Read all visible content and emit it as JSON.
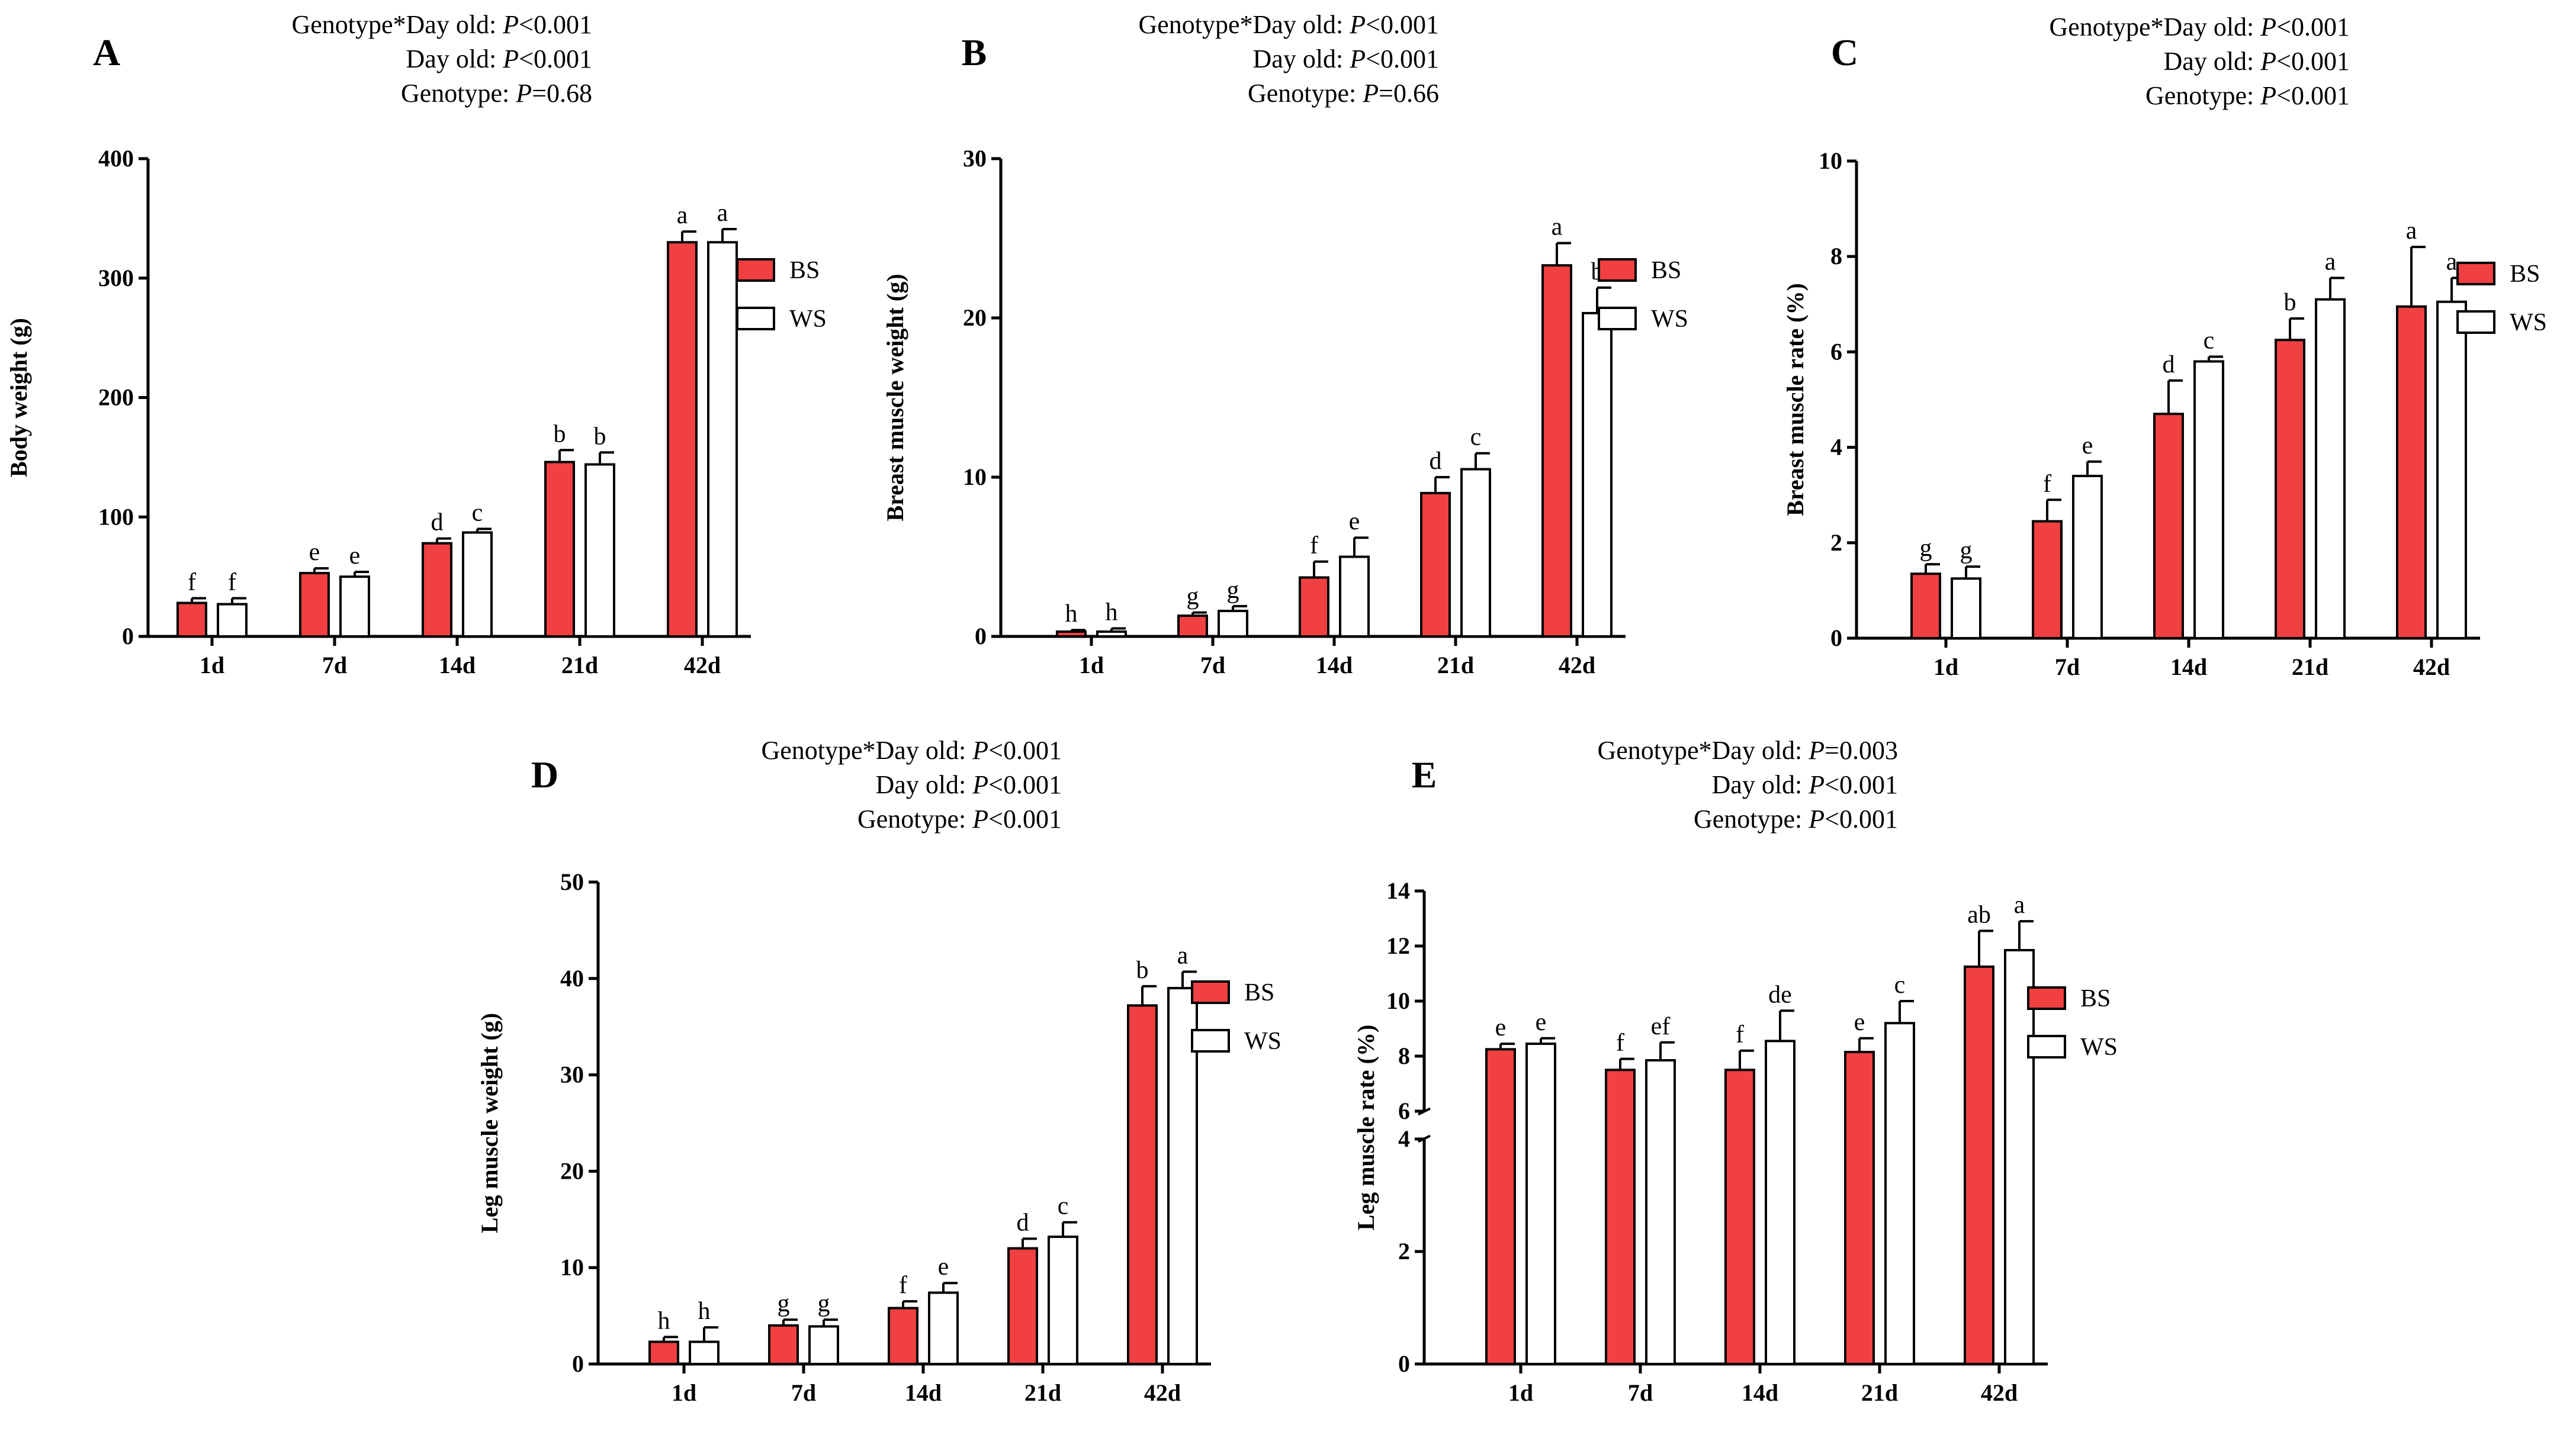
{
  "colors": {
    "bs": "#F04042",
    "ws": "#FFFFFF",
    "stroke": "#000000"
  },
  "categories": [
    "1d",
    "7d",
    "14d",
    "21d",
    "42d"
  ],
  "legend": {
    "bs": "BS",
    "ws": "WS"
  },
  "chart_data": [
    {
      "panel": "A",
      "type": "bar",
      "ylabel": "Body weight (g)",
      "ylim": [
        0,
        400
      ],
      "yticks": [
        0,
        100,
        200,
        300,
        400
      ],
      "stats": [
        {
          "term": "Genotype*Day old: ",
          "italic": "P",
          "rest": "<0.001"
        },
        {
          "term": "Day old: ",
          "italic": "P",
          "rest": "<0.001"
        },
        {
          "term": "Genotype: ",
          "italic": "P",
          "rest": "=0.68"
        }
      ],
      "series": [
        {
          "name": "BS",
          "values": [
            28,
            53,
            78,
            146,
            330
          ],
          "errors": [
            4,
            4,
            4,
            10,
            9
          ],
          "letters": [
            "f",
            "e",
            "d",
            "b",
            "a"
          ]
        },
        {
          "name": "WS",
          "values": [
            27,
            50,
            87,
            144,
            330
          ],
          "errors": [
            5,
            4,
            3,
            10,
            11
          ],
          "letters": [
            "f",
            "e",
            "c",
            "b",
            "a"
          ]
        }
      ]
    },
    {
      "panel": "B",
      "type": "bar",
      "ylabel": "Breast muscle weight (g)",
      "ylim": [
        0,
        30
      ],
      "yticks": [
        0,
        10,
        20,
        30
      ],
      "stats": [
        {
          "term": "Genotype*Day old: ",
          "italic": "P",
          "rest": "<0.001"
        },
        {
          "term": "Day old: ",
          "italic": "P",
          "rest": "<0.001"
        },
        {
          "term": "Genotype: ",
          "italic": "P",
          "rest": "=0.66"
        }
      ],
      "series": [
        {
          "name": "BS",
          "values": [
            0.3,
            1.3,
            3.7,
            9.0,
            23.3
          ],
          "errors": [
            0.1,
            0.2,
            1.0,
            1.0,
            1.4
          ],
          "letters": [
            "h",
            "g",
            "f",
            "d",
            "a"
          ]
        },
        {
          "name": "WS",
          "values": [
            0.3,
            1.6,
            5.0,
            10.5,
            20.3
          ],
          "errors": [
            0.2,
            0.3,
            1.2,
            1.0,
            1.6
          ],
          "letters": [
            "h",
            "g",
            "e",
            "c",
            "b"
          ]
        }
      ]
    },
    {
      "panel": "C",
      "type": "bar",
      "ylabel": "Breast muscle rate (%)",
      "ylim": [
        0,
        10
      ],
      "yticks": [
        0,
        2,
        4,
        6,
        8,
        10
      ],
      "stats": [
        {
          "term": "Genotype*Day old: ",
          "italic": "P",
          "rest": "<0.001"
        },
        {
          "term": "Day old: ",
          "italic": "P",
          "rest": "<0.001"
        },
        {
          "term": "Genotype: ",
          "italic": "P",
          "rest": "<0.001"
        }
      ],
      "series": [
        {
          "name": "BS",
          "values": [
            1.35,
            2.45,
            4.7,
            6.25,
            6.95
          ],
          "errors": [
            0.2,
            0.45,
            0.7,
            0.45,
            1.25
          ],
          "letters": [
            "g",
            "f",
            "d",
            "b",
            "a"
          ]
        },
        {
          "name": "WS",
          "values": [
            1.25,
            3.4,
            5.8,
            7.1,
            7.05
          ],
          "errors": [
            0.25,
            0.3,
            0.1,
            0.45,
            0.5
          ],
          "letters": [
            "g",
            "e",
            "c",
            "a",
            "a"
          ]
        }
      ]
    },
    {
      "panel": "D",
      "type": "bar",
      "ylabel": "Leg muscle weight (g)",
      "ylim": [
        0,
        50
      ],
      "yticks": [
        0,
        10,
        20,
        30,
        40,
        50
      ],
      "stats": [
        {
          "term": "Genotype*Day old: ",
          "italic": "P",
          "rest": "<0.001"
        },
        {
          "term": "Day  old: ",
          "italic": "P",
          "rest": "<0.001"
        },
        {
          "term": "Genotype: ",
          "italic": "P",
          "rest": "<0.001"
        }
      ],
      "series": [
        {
          "name": "BS",
          "values": [
            2.3,
            4.0,
            5.8,
            12.0,
            37.2
          ],
          "errors": [
            0.5,
            0.6,
            0.7,
            1.0,
            2.0
          ],
          "letters": [
            "h",
            "g",
            "f",
            "d",
            "b"
          ]
        },
        {
          "name": "WS",
          "values": [
            2.3,
            3.9,
            7.4,
            13.2,
            39.0
          ],
          "errors": [
            1.5,
            0.7,
            1.0,
            1.5,
            1.7
          ],
          "letters": [
            "h",
            "g",
            "e",
            "c",
            "a"
          ]
        }
      ]
    },
    {
      "panel": "E",
      "type": "bar",
      "ylabel": "Leg muscle rate (%)",
      "ylim": [
        0,
        14
      ],
      "axis_break": [
        4,
        6
      ],
      "yticks": [
        0,
        2,
        4,
        6,
        8,
        10,
        12,
        14
      ],
      "stats": [
        {
          "term": "Genotype*Day old: ",
          "italic": "P",
          "rest": "=0.003"
        },
        {
          "term": "Day old: ",
          "italic": "P",
          "rest": "<0.001"
        },
        {
          "term": "Genotype: ",
          "italic": "P",
          "rest": "<0.001"
        }
      ],
      "series": [
        {
          "name": "BS",
          "values": [
            8.25,
            7.5,
            7.5,
            8.15,
            11.25
          ],
          "errors": [
            0.2,
            0.4,
            0.7,
            0.5,
            1.3
          ],
          "letters": [
            "e",
            "f",
            "f",
            "e",
            "ab"
          ]
        },
        {
          "name": "WS",
          "values": [
            8.45,
            7.85,
            8.55,
            9.2,
            11.85
          ],
          "errors": [
            0.2,
            0.65,
            1.1,
            0.8,
            1.05
          ],
          "letters": [
            "e",
            "ef",
            "de",
            "c",
            "a"
          ]
        }
      ]
    }
  ]
}
